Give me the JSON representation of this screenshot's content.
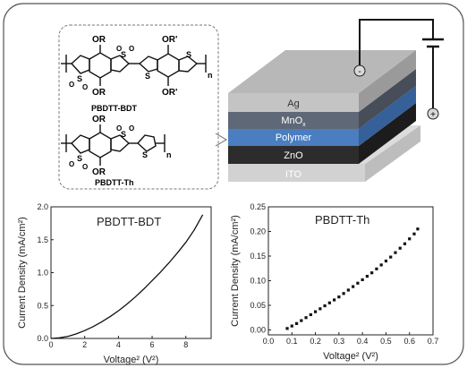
{
  "molecules": {
    "bdt": {
      "label": "PBDTT-BDT",
      "sub_or_top": "OR",
      "sub_or_bottom": "OR",
      "sub_orp_top": "OR'",
      "sub_orp_bottom": "OR'",
      "s_label": "S",
      "o_label": "O",
      "n_label": "n"
    },
    "th": {
      "label": "PBDTT-Th",
      "sub_or_top": "OR",
      "sub_or_bottom": "OR",
      "s_label": "S",
      "o_label": "O",
      "n_label": "n"
    }
  },
  "device": {
    "layers": [
      "Ag",
      "MnOx",
      "Polymer",
      "ZnO",
      "ITO"
    ],
    "layer_colors": {
      "Ag": "#c4c4c4",
      "MnOx": "#5f6876",
      "Polymer": "#4a7ec0",
      "ZnO": "#2c2c2c",
      "ITO": "#d2d2d2"
    },
    "minus_sign": "-",
    "plus_sign": "+"
  },
  "chart_data": [
    {
      "type": "line",
      "title": "PBDTT-BDT",
      "xlabel": "Voltage² (V²)",
      "ylabel": "Current Density (mA/cm²)",
      "xlim": [
        0,
        9.5
      ],
      "ylim": [
        0,
        2.0
      ],
      "xticks": [
        "0",
        "2",
        "4",
        "6",
        "8"
      ],
      "yticks": [
        "0.0",
        "0.5",
        "1.0",
        "1.5",
        "2.0"
      ],
      "x": [
        0,
        0.5,
        1.0,
        1.5,
        2.0,
        2.5,
        3.0,
        3.5,
        4.0,
        4.5,
        5.0,
        5.5,
        6.0,
        6.5,
        7.0,
        7.5,
        8.0,
        8.5,
        9.0
      ],
      "y": [
        0.0,
        0.01,
        0.03,
        0.07,
        0.12,
        0.18,
        0.25,
        0.33,
        0.42,
        0.52,
        0.63,
        0.75,
        0.88,
        1.01,
        1.15,
        1.3,
        1.46,
        1.65,
        1.88
      ]
    },
    {
      "type": "scatter",
      "title": "PBDTT-Th",
      "xlabel": "Voltage² (V²)",
      "ylabel": "Current Density (mA/cm²)",
      "xlim": [
        0,
        0.7
      ],
      "ylim": [
        -0.01,
        0.25
      ],
      "xticks": [
        "0.0",
        "0.1",
        "0.2",
        "0.3",
        "0.4",
        "0.5",
        "0.6",
        "0.7"
      ],
      "yticks": [
        "0.00",
        "0.05",
        "0.10",
        "0.15",
        "0.20",
        "0.25"
      ],
      "x": [
        0.08,
        0.1,
        0.12,
        0.14,
        0.16,
        0.18,
        0.2,
        0.22,
        0.24,
        0.26,
        0.28,
        0.3,
        0.32,
        0.34,
        0.36,
        0.38,
        0.4,
        0.42,
        0.44,
        0.46,
        0.48,
        0.5,
        0.52,
        0.54,
        0.56,
        0.58,
        0.6,
        0.62,
        0.635
      ],
      "y": [
        0.003,
        0.008,
        0.013,
        0.019,
        0.025,
        0.031,
        0.037,
        0.043,
        0.049,
        0.055,
        0.061,
        0.067,
        0.074,
        0.081,
        0.088,
        0.095,
        0.102,
        0.109,
        0.116,
        0.124,
        0.132,
        0.14,
        0.148,
        0.157,
        0.166,
        0.175,
        0.185,
        0.195,
        0.205
      ]
    }
  ]
}
